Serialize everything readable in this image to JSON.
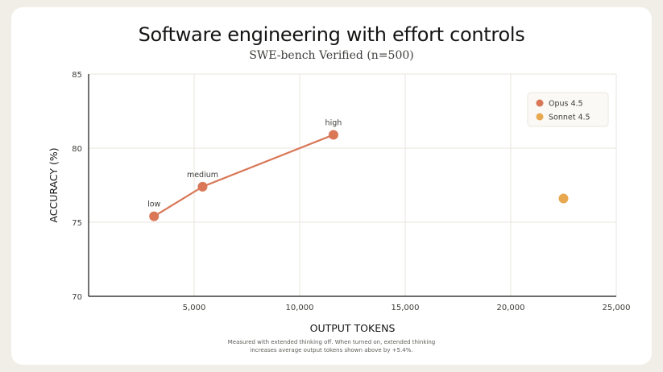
{
  "chart_data": {
    "type": "scatter",
    "title": "Software engineering with effort controls",
    "subtitle": "SWE-bench Verified (n=500)",
    "xlabel": "OUTPUT TOKENS",
    "ylabel": "ACCURACY (%)",
    "xlim": [
      0,
      25000
    ],
    "ylim": [
      70,
      85
    ],
    "xticks": [
      5000,
      10000,
      15000,
      20000,
      25000
    ],
    "xtick_labels": [
      "5,000",
      "10,000",
      "15,000",
      "20,000",
      "25,000"
    ],
    "yticks": [
      70,
      75,
      80,
      85
    ],
    "ytick_labels": [
      "70",
      "75",
      "80",
      "85"
    ],
    "grid": true,
    "legend_position": "top-right",
    "series": [
      {
        "name": "Opus 4.5",
        "color": "#d97757",
        "connected": true,
        "points": [
          {
            "label": "low",
            "x": 3100,
            "y": 75.4
          },
          {
            "label": "medium",
            "x": 5400,
            "y": 77.4
          },
          {
            "label": "high",
            "x": 11600,
            "y": 80.9
          }
        ]
      },
      {
        "name": "Sonnet 4.5",
        "color": "#e8a84f",
        "connected": false,
        "points": [
          {
            "label": "",
            "x": 22500,
            "y": 76.6
          }
        ]
      }
    ],
    "footnote_lines": [
      "Measured with extended thinking off. When turned on, extended thinking",
      "increases average output tokens shown above by +5.4%."
    ]
  }
}
